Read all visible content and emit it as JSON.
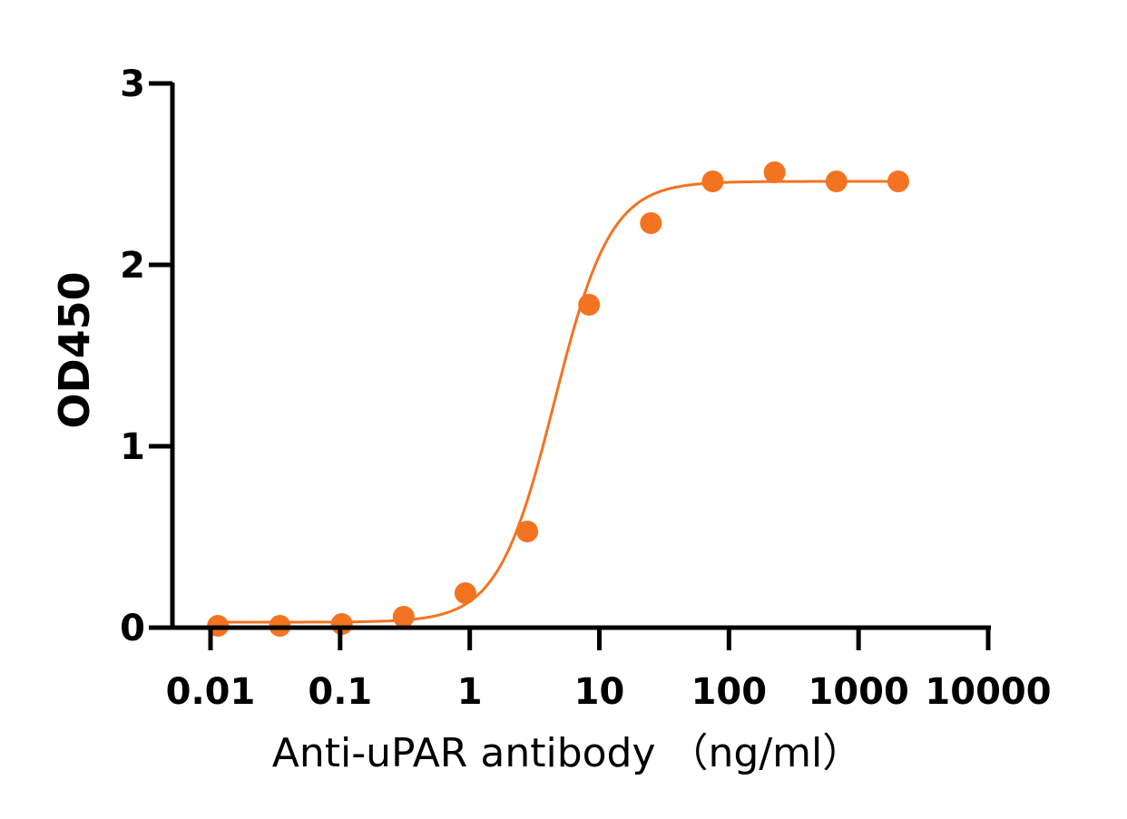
{
  "chart_data": {
    "type": "scatter",
    "title": "",
    "xlabel": "Anti-uPAR antibody （ng/ml）",
    "ylabel": "OD450",
    "x_scale": "log",
    "xlim": [
      0.01,
      10000
    ],
    "ylim": [
      0,
      3
    ],
    "x_ticks": [
      "0.01",
      "0.1",
      "1",
      "10",
      "100",
      "1000",
      "10000"
    ],
    "y_ticks": [
      "0",
      "1",
      "2",
      "3"
    ],
    "grid": false,
    "legend": "none",
    "series": [
      {
        "color": "#F47321",
        "points": [
          {
            "x": 0.0114,
            "y": 0.01
          },
          {
            "x": 0.0343,
            "y": 0.01
          },
          {
            "x": 0.103,
            "y": 0.02
          },
          {
            "x": 0.309,
            "y": 0.06
          },
          {
            "x": 0.926,
            "y": 0.19
          },
          {
            "x": 2.78,
            "y": 0.53
          },
          {
            "x": 8.33,
            "y": 1.78
          },
          {
            "x": 25.0,
            "y": 2.23
          },
          {
            "x": 75.0,
            "y": 2.46
          },
          {
            "x": 225,
            "y": 2.51
          },
          {
            "x": 675,
            "y": 2.46
          },
          {
            "x": 2025,
            "y": 2.46
          }
        ],
        "fit_curve": {
          "model": "4PL",
          "bottom": 0.03,
          "top": 2.46,
          "ec50": 4.5,
          "hill": 2.0
        }
      }
    ]
  }
}
